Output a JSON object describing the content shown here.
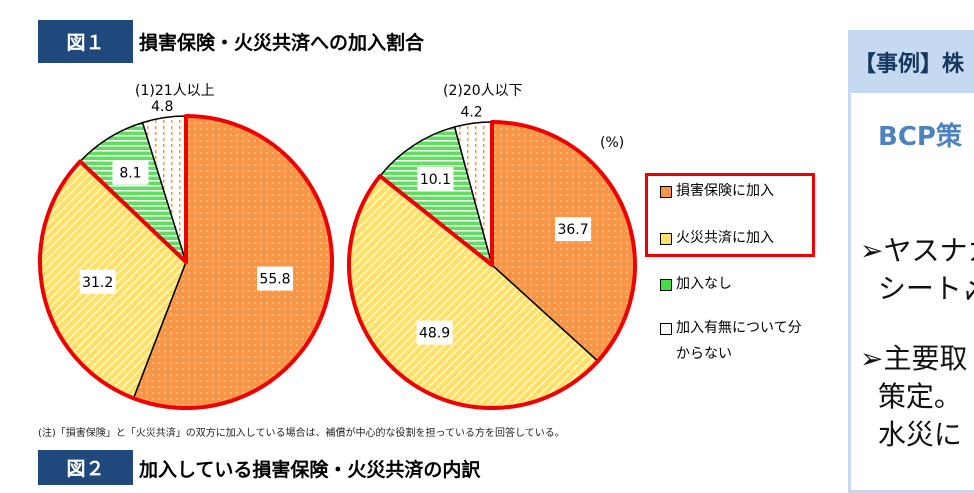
{
  "figure1": {
    "label": "図１",
    "title": "損害保険・火災共済への加入割合"
  },
  "figure2": {
    "label": "図２",
    "title": "加入している損害保険・火災共済の内訳"
  },
  "note": "(注)「損害保険」と「火災共済」の双方に加入している場合は、補償が中心的な役割を担っている方を回答している。",
  "unit": "(%)",
  "chart_data": [
    {
      "type": "pie",
      "title": "(1)21人以上",
      "categories": [
        "損害保険に加入",
        "火災共済に加入",
        "加入なし",
        "加入有無について分からない"
      ],
      "values": [
        55.8,
        31.2,
        8.1,
        4.8
      ],
      "highlighted": [
        "損害保険に加入",
        "火災共済に加入"
      ]
    },
    {
      "type": "pie",
      "title": "(2)20人以下",
      "categories": [
        "損害保険に加入",
        "火災共済に加入",
        "加入なし",
        "加入有無について分からない"
      ],
      "values": [
        36.7,
        48.9,
        10.1,
        4.2
      ],
      "highlighted": [
        "損害保険に加入",
        "火災共済に加入"
      ]
    }
  ],
  "legend": [
    {
      "label": "損害保険に加入",
      "color": "#f79646"
    },
    {
      "label": "火災共済に加入",
      "color": "#ffe066"
    },
    {
      "label": "加入なし",
      "color": "#44dd44"
    },
    {
      "label": "加入有無について分からない",
      "color": "#ffffff"
    }
  ],
  "colors": {
    "highlight": "#e00000",
    "figure_label_bg": "#1f497d",
    "panel_bg": "#c5d9f1"
  },
  "panel": {
    "heading": "【事例】株",
    "subheading": "BCP策",
    "bullets": [
      [
        "ヤスナカ",
        "シート〆"
      ],
      [
        "主要取",
        "策定。",
        "水災に"
      ]
    ]
  }
}
